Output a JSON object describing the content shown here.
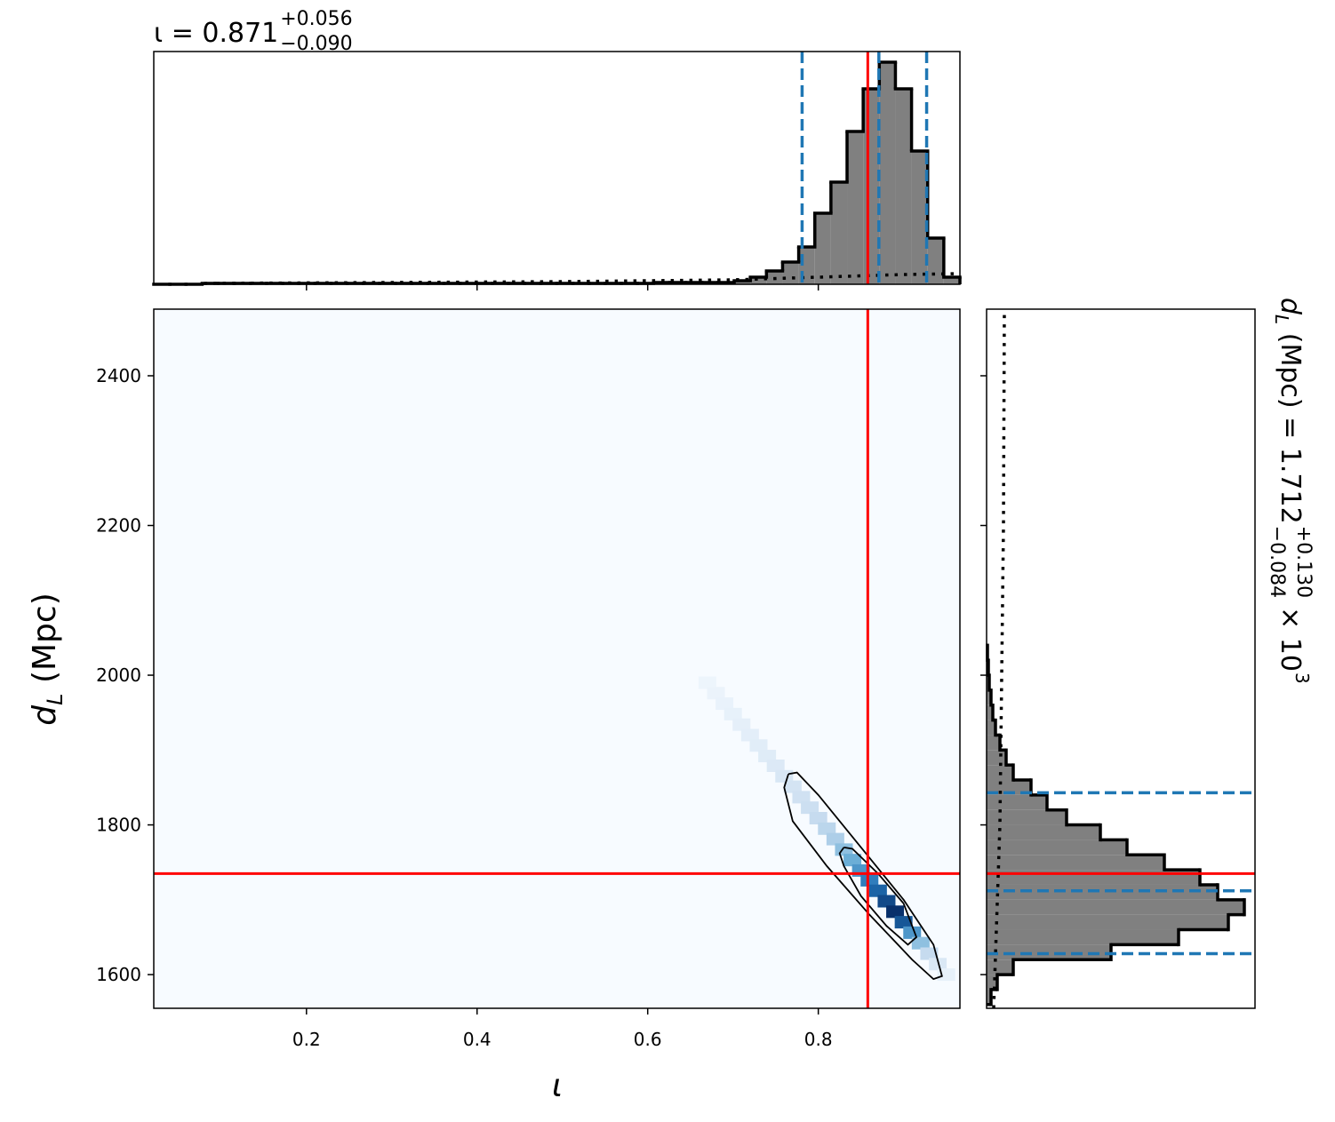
{
  "chart_data": [
    {
      "type": "histogram",
      "orientation": "vertical",
      "title": "ι = 0.871",
      "title_sup": "+0.056",
      "title_sub": "−0.090",
      "bins": [
        0.021,
        0.0399,
        0.0588,
        0.0777,
        0.0966,
        0.1155,
        0.1344,
        0.1533,
        0.1722,
        0.1911,
        0.21,
        0.2289,
        0.2478,
        0.2667,
        0.2856,
        0.3045,
        0.3234,
        0.3423,
        0.3612,
        0.3801,
        0.399,
        0.4179,
        0.4368,
        0.4557,
        0.4746,
        0.4935,
        0.5124,
        0.5313,
        0.5502,
        0.5691,
        0.588,
        0.6069,
        0.6258,
        0.6447,
        0.6636,
        0.6825,
        0.7014,
        0.7203,
        0.7392,
        0.7581,
        0.777,
        0.7959,
        0.8148,
        0.8337,
        0.8526,
        0.8715,
        0.8904,
        0.9093,
        0.9282,
        0.9471,
        0.966
      ],
      "values": [
        0,
        0,
        0,
        1,
        1,
        1,
        1,
        1,
        1,
        1,
        1,
        1,
        1,
        1,
        1,
        1,
        1,
        1,
        1,
        1,
        1,
        1,
        1,
        1,
        1,
        1,
        1,
        1,
        1,
        1,
        1,
        2,
        2,
        2,
        2,
        2,
        4,
        8,
        15,
        25,
        42,
        80,
        115,
        172,
        220,
        250,
        220,
        150,
        52,
        8
      ],
      "color": "#808080",
      "edge_color": "#000000",
      "xlim": [
        0.021,
        0.966
      ],
      "ylim": [
        0,
        262
      ],
      "xticks": [
        0.2,
        0.4,
        0.6,
        0.8
      ],
      "prior": {
        "x": [
          0.08,
          0.5,
          0.7,
          0.8,
          0.9,
          0.966
        ],
        "values": [
          1,
          3,
          5,
          8,
          11,
          12
        ]
      },
      "quantiles": [
        0.781,
        0.871,
        0.927
      ],
      "quantile_color": "#1f77b4",
      "truth": 0.858,
      "truth_color": "#ff0000"
    },
    {
      "type": "heatmap",
      "xlabel": "ι",
      "ylabel": "d",
      "ylabel_sub": "L",
      "ylabel_rest": " (Mpc)",
      "xlim": [
        0.021,
        0.966
      ],
      "ylim": [
        1555,
        2489
      ],
      "xticks": [
        0.2,
        0.4,
        0.6,
        0.8
      ],
      "yticks": [
        1600,
        1800,
        2000,
        2200,
        2400
      ],
      "cells": {
        "x": [
          0.67,
          0.68,
          0.69,
          0.7,
          0.71,
          0.72,
          0.73,
          0.74,
          0.75,
          0.76,
          0.77,
          0.78,
          0.79,
          0.8,
          0.81,
          0.82,
          0.83,
          0.84,
          0.85,
          0.86,
          0.87,
          0.88,
          0.89,
          0.9,
          0.91,
          0.92,
          0.93,
          0.94,
          0.95
        ],
        "y": [
          1990,
          1976,
          1962,
          1948,
          1934,
          1920,
          1906,
          1892,
          1879,
          1865,
          1851,
          1837,
          1823,
          1809,
          1795,
          1781,
          1767,
          1753,
          1739,
          1726,
          1712,
          1698,
          1684,
          1670,
          1656,
          1642,
          1628,
          1614,
          1600
        ],
        "values": [
          0.05,
          0.06,
          0.07,
          0.08,
          0.09,
          0.1,
          0.11,
          0.12,
          0.14,
          0.16,
          0.18,
          0.2,
          0.22,
          0.25,
          0.28,
          0.32,
          0.4,
          0.5,
          0.6,
          0.7,
          0.8,
          0.9,
          1,
          0.85,
          0.6,
          0.4,
          0.25,
          0.15,
          0.08
        ]
      },
      "contours": [
        {
          "x": [
            0.765,
            0.775,
            0.8,
            0.85,
            0.9,
            0.935,
            0.945,
            0.935,
            0.91,
            0.86,
            0.81,
            0.77,
            0.76,
            0.765
          ],
          "y": [
            1868,
            1870,
            1840,
            1770,
            1700,
            1640,
            1598,
            1594,
            1620,
            1680,
            1745,
            1805,
            1850,
            1868
          ]
        },
        {
          "x": [
            0.83,
            0.84,
            0.87,
            0.9,
            0.915,
            0.905,
            0.88,
            0.85,
            0.83,
            0.825,
            0.83
          ],
          "y": [
            1770,
            1768,
            1735,
            1695,
            1650,
            1640,
            1665,
            1705,
            1745,
            1762,
            1770
          ]
        }
      ],
      "truth_x": 0.858,
      "truth_y": 1735,
      "truth_color": "#ff0000"
    },
    {
      "type": "histogram",
      "orientation": "horizontal",
      "title": "d",
      "title_sub_letter": "L",
      "title_rest": " (Mpc) = 1.712",
      "title_sup": "+0.130",
      "title_sub": "−0.084",
      "title_factor": "× 10",
      "title_exp": "3",
      "bins": [
        1560,
        1580,
        1600,
        1620,
        1640,
        1660,
        1680,
        1700,
        1720,
        1740,
        1760,
        1780,
        1800,
        1820,
        1840,
        1860,
        1880,
        1900,
        1920,
        1940,
        1960,
        1980,
        2000,
        2020,
        2040
      ],
      "values": [
        5,
        12,
        30,
        140,
        216,
        272,
        290,
        260,
        240,
        200,
        158,
        128,
        90,
        68,
        50,
        30,
        22,
        15,
        10,
        7,
        5,
        3,
        2,
        1
      ],
      "color": "#808080",
      "edge_color": "#000000",
      "xlim": [
        0,
        302
      ],
      "ylim": [
        1555,
        2489
      ],
      "yticks": [
        1600,
        1800,
        2000,
        2200,
        2400
      ],
      "prior": {
        "y": [
          1555,
          1800,
          2000,
          2200,
          2489
        ],
        "values": [
          8,
          15,
          17,
          19,
          20
        ]
      },
      "quantiles": [
        1628,
        1712,
        1843
      ],
      "quantile_color": "#1f77b4",
      "truth": 1735,
      "truth_color": "#ff0000"
    }
  ]
}
